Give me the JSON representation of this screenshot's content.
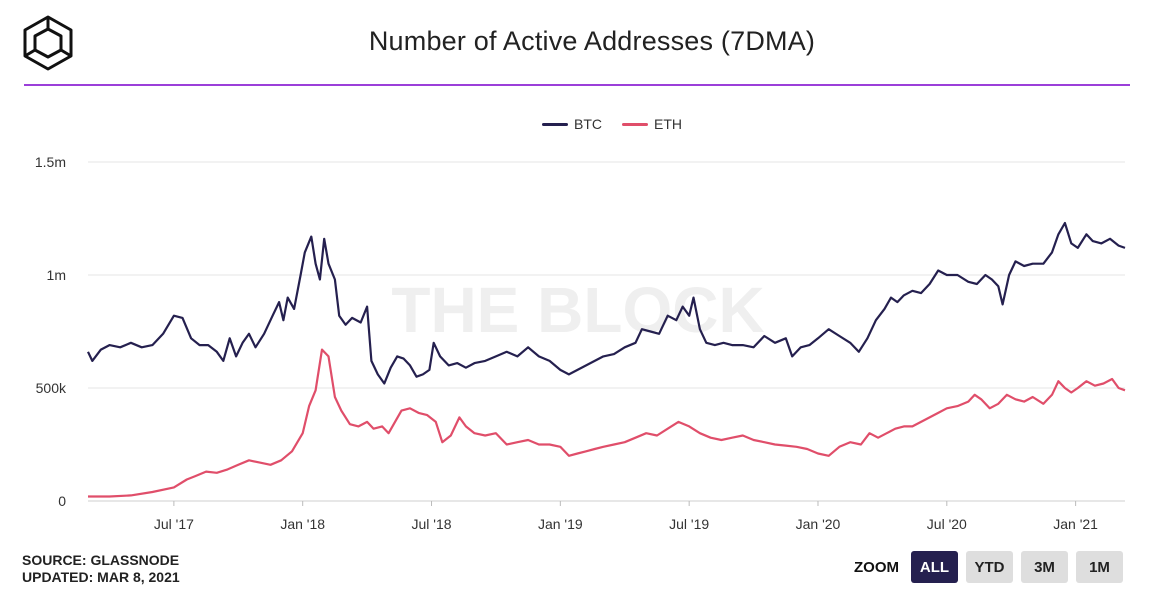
{
  "header": {
    "title": "Number of Active Addresses (7DMA)",
    "logo_icon": "cube-logo-icon"
  },
  "footer": {
    "source": "SOURCE: GLASSNODE",
    "updated": "UPDATED: MAR 8, 2021"
  },
  "zoom": {
    "label": "ZOOM",
    "options": [
      "ALL",
      "YTD",
      "3M",
      "1M"
    ],
    "selected": "ALL"
  },
  "watermark": "THE BLOCK",
  "colors": {
    "btc": "#25204f",
    "eth": "#e04e6a",
    "accent": "#9b3fd9",
    "grid": "#e6e6e6"
  },
  "chart_data": {
    "type": "line",
    "title": "Number of Active Addresses (7DMA)",
    "xlabel": "",
    "ylabel": "",
    "x_unit": "months since Jan 2017",
    "xlim": [
      2.0,
      50.3
    ],
    "ylim": [
      0,
      1500000
    ],
    "y_ticks": [
      {
        "value": 0,
        "label": "0"
      },
      {
        "value": 500000,
        "label": "500k"
      },
      {
        "value": 1000000,
        "label": "1m"
      },
      {
        "value": 1500000,
        "label": "1.5m"
      }
    ],
    "x_ticks": [
      {
        "value": 6,
        "label": "Jul '17"
      },
      {
        "value": 12,
        "label": "Jan '18"
      },
      {
        "value": 18,
        "label": "Jul '18"
      },
      {
        "value": 24,
        "label": "Jan '19"
      },
      {
        "value": 30,
        "label": "Jul '19"
      },
      {
        "value": 36,
        "label": "Jan '20"
      },
      {
        "value": 42,
        "label": "Jul '20"
      },
      {
        "value": 48,
        "label": "Jan '21"
      }
    ],
    "legend_position": "top-center",
    "series": [
      {
        "name": "BTC",
        "color": "#25204f",
        "points": [
          [
            2.0,
            660000
          ],
          [
            2.2,
            620000
          ],
          [
            2.6,
            670000
          ],
          [
            3.0,
            690000
          ],
          [
            3.5,
            680000
          ],
          [
            4.0,
            700000
          ],
          [
            4.5,
            680000
          ],
          [
            5.0,
            690000
          ],
          [
            5.5,
            740000
          ],
          [
            6.0,
            820000
          ],
          [
            6.4,
            810000
          ],
          [
            6.8,
            720000
          ],
          [
            7.2,
            690000
          ],
          [
            7.6,
            690000
          ],
          [
            8.0,
            660000
          ],
          [
            8.3,
            620000
          ],
          [
            8.6,
            720000
          ],
          [
            8.9,
            640000
          ],
          [
            9.2,
            700000
          ],
          [
            9.5,
            740000
          ],
          [
            9.8,
            680000
          ],
          [
            10.2,
            740000
          ],
          [
            10.6,
            820000
          ],
          [
            10.9,
            880000
          ],
          [
            11.1,
            800000
          ],
          [
            11.3,
            900000
          ],
          [
            11.6,
            850000
          ],
          [
            11.9,
            1000000
          ],
          [
            12.1,
            1100000
          ],
          [
            12.4,
            1170000
          ],
          [
            12.6,
            1050000
          ],
          [
            12.8,
            980000
          ],
          [
            13.0,
            1160000
          ],
          [
            13.2,
            1050000
          ],
          [
            13.5,
            980000
          ],
          [
            13.7,
            820000
          ],
          [
            14.0,
            780000
          ],
          [
            14.3,
            810000
          ],
          [
            14.7,
            790000
          ],
          [
            15.0,
            860000
          ],
          [
            15.2,
            620000
          ],
          [
            15.5,
            560000
          ],
          [
            15.8,
            520000
          ],
          [
            16.1,
            590000
          ],
          [
            16.4,
            640000
          ],
          [
            16.7,
            630000
          ],
          [
            17.0,
            600000
          ],
          [
            17.3,
            550000
          ],
          [
            17.6,
            560000
          ],
          [
            17.9,
            580000
          ],
          [
            18.1,
            700000
          ],
          [
            18.4,
            640000
          ],
          [
            18.8,
            600000
          ],
          [
            19.2,
            610000
          ],
          [
            19.6,
            590000
          ],
          [
            20.0,
            610000
          ],
          [
            20.5,
            620000
          ],
          [
            21.0,
            640000
          ],
          [
            21.5,
            660000
          ],
          [
            22.0,
            640000
          ],
          [
            22.5,
            680000
          ],
          [
            23.0,
            640000
          ],
          [
            23.5,
            620000
          ],
          [
            24.0,
            580000
          ],
          [
            24.4,
            560000
          ],
          [
            24.8,
            580000
          ],
          [
            25.2,
            600000
          ],
          [
            25.6,
            620000
          ],
          [
            26.0,
            640000
          ],
          [
            26.5,
            650000
          ],
          [
            27.0,
            680000
          ],
          [
            27.5,
            700000
          ],
          [
            27.8,
            760000
          ],
          [
            28.2,
            750000
          ],
          [
            28.6,
            740000
          ],
          [
            29.0,
            820000
          ],
          [
            29.4,
            800000
          ],
          [
            29.7,
            860000
          ],
          [
            30.0,
            820000
          ],
          [
            30.2,
            900000
          ],
          [
            30.5,
            760000
          ],
          [
            30.8,
            700000
          ],
          [
            31.2,
            690000
          ],
          [
            31.6,
            700000
          ],
          [
            32.0,
            690000
          ],
          [
            32.5,
            690000
          ],
          [
            33.0,
            680000
          ],
          [
            33.5,
            730000
          ],
          [
            34.0,
            700000
          ],
          [
            34.5,
            720000
          ],
          [
            34.8,
            640000
          ],
          [
            35.2,
            680000
          ],
          [
            35.6,
            690000
          ],
          [
            36.0,
            720000
          ],
          [
            36.5,
            760000
          ],
          [
            37.0,
            730000
          ],
          [
            37.5,
            700000
          ],
          [
            37.9,
            660000
          ],
          [
            38.3,
            720000
          ],
          [
            38.7,
            800000
          ],
          [
            39.1,
            850000
          ],
          [
            39.4,
            900000
          ],
          [
            39.7,
            880000
          ],
          [
            40.0,
            910000
          ],
          [
            40.4,
            930000
          ],
          [
            40.8,
            920000
          ],
          [
            41.2,
            960000
          ],
          [
            41.6,
            1020000
          ],
          [
            42.0,
            1000000
          ],
          [
            42.5,
            1000000
          ],
          [
            43.0,
            970000
          ],
          [
            43.4,
            960000
          ],
          [
            43.8,
            1000000
          ],
          [
            44.1,
            980000
          ],
          [
            44.4,
            950000
          ],
          [
            44.6,
            870000
          ],
          [
            44.9,
            1000000
          ],
          [
            45.2,
            1060000
          ],
          [
            45.6,
            1040000
          ],
          [
            46.0,
            1050000
          ],
          [
            46.5,
            1050000
          ],
          [
            46.9,
            1100000
          ],
          [
            47.2,
            1180000
          ],
          [
            47.5,
            1230000
          ],
          [
            47.8,
            1140000
          ],
          [
            48.1,
            1120000
          ],
          [
            48.5,
            1180000
          ],
          [
            48.8,
            1150000
          ],
          [
            49.2,
            1140000
          ],
          [
            49.6,
            1160000
          ],
          [
            50.0,
            1130000
          ],
          [
            50.3,
            1120000
          ]
        ]
      },
      {
        "name": "ETH",
        "color": "#e04e6a",
        "points": [
          [
            2.0,
            20000
          ],
          [
            3.0,
            20000
          ],
          [
            4.0,
            25000
          ],
          [
            5.0,
            40000
          ],
          [
            6.0,
            60000
          ],
          [
            6.6,
            95000
          ],
          [
            7.0,
            110000
          ],
          [
            7.5,
            130000
          ],
          [
            8.0,
            125000
          ],
          [
            8.5,
            140000
          ],
          [
            9.0,
            160000
          ],
          [
            9.5,
            180000
          ],
          [
            10.0,
            170000
          ],
          [
            10.5,
            160000
          ],
          [
            11.0,
            180000
          ],
          [
            11.5,
            220000
          ],
          [
            12.0,
            300000
          ],
          [
            12.3,
            420000
          ],
          [
            12.6,
            490000
          ],
          [
            12.9,
            670000
          ],
          [
            13.2,
            640000
          ],
          [
            13.5,
            460000
          ],
          [
            13.8,
            400000
          ],
          [
            14.2,
            340000
          ],
          [
            14.6,
            330000
          ],
          [
            15.0,
            350000
          ],
          [
            15.3,
            320000
          ],
          [
            15.7,
            330000
          ],
          [
            16.0,
            300000
          ],
          [
            16.3,
            350000
          ],
          [
            16.6,
            400000
          ],
          [
            17.0,
            410000
          ],
          [
            17.4,
            390000
          ],
          [
            17.8,
            380000
          ],
          [
            18.2,
            350000
          ],
          [
            18.5,
            260000
          ],
          [
            18.9,
            290000
          ],
          [
            19.3,
            370000
          ],
          [
            19.6,
            330000
          ],
          [
            20.0,
            300000
          ],
          [
            20.5,
            290000
          ],
          [
            21.0,
            300000
          ],
          [
            21.5,
            250000
          ],
          [
            22.0,
            260000
          ],
          [
            22.5,
            270000
          ],
          [
            23.0,
            250000
          ],
          [
            23.5,
            250000
          ],
          [
            24.0,
            240000
          ],
          [
            24.4,
            200000
          ],
          [
            24.8,
            210000
          ],
          [
            25.2,
            220000
          ],
          [
            25.6,
            230000
          ],
          [
            26.0,
            240000
          ],
          [
            26.5,
            250000
          ],
          [
            27.0,
            260000
          ],
          [
            27.5,
            280000
          ],
          [
            28.0,
            300000
          ],
          [
            28.5,
            290000
          ],
          [
            29.0,
            320000
          ],
          [
            29.5,
            350000
          ],
          [
            30.0,
            330000
          ],
          [
            30.5,
            300000
          ],
          [
            31.0,
            280000
          ],
          [
            31.5,
            270000
          ],
          [
            32.0,
            280000
          ],
          [
            32.5,
            290000
          ],
          [
            33.0,
            270000
          ],
          [
            33.5,
            260000
          ],
          [
            34.0,
            250000
          ],
          [
            34.5,
            245000
          ],
          [
            35.0,
            240000
          ],
          [
            35.5,
            230000
          ],
          [
            36.0,
            210000
          ],
          [
            36.5,
            200000
          ],
          [
            37.0,
            240000
          ],
          [
            37.5,
            260000
          ],
          [
            38.0,
            250000
          ],
          [
            38.4,
            300000
          ],
          [
            38.8,
            280000
          ],
          [
            39.2,
            300000
          ],
          [
            39.6,
            320000
          ],
          [
            40.0,
            330000
          ],
          [
            40.4,
            330000
          ],
          [
            40.8,
            350000
          ],
          [
            41.2,
            370000
          ],
          [
            41.6,
            390000
          ],
          [
            42.0,
            410000
          ],
          [
            42.5,
            420000
          ],
          [
            43.0,
            440000
          ],
          [
            43.3,
            470000
          ],
          [
            43.6,
            450000
          ],
          [
            44.0,
            410000
          ],
          [
            44.4,
            430000
          ],
          [
            44.8,
            470000
          ],
          [
            45.2,
            450000
          ],
          [
            45.6,
            440000
          ],
          [
            46.0,
            460000
          ],
          [
            46.5,
            430000
          ],
          [
            46.9,
            470000
          ],
          [
            47.2,
            530000
          ],
          [
            47.5,
            500000
          ],
          [
            47.8,
            480000
          ],
          [
            48.1,
            500000
          ],
          [
            48.5,
            530000
          ],
          [
            48.9,
            510000
          ],
          [
            49.3,
            520000
          ],
          [
            49.7,
            540000
          ],
          [
            50.0,
            500000
          ],
          [
            50.3,
            490000
          ]
        ]
      }
    ]
  }
}
